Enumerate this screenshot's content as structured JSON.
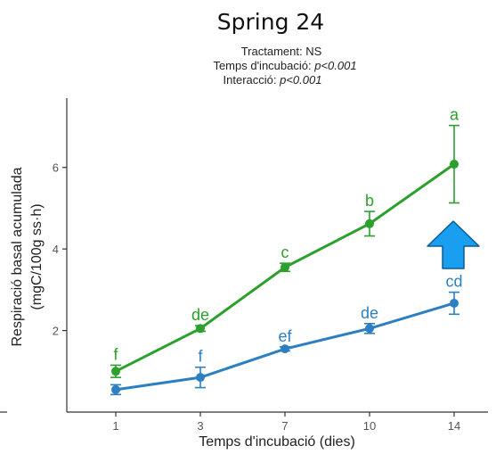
{
  "chart_data": {
    "type": "line",
    "title": "Spring 24",
    "stats": [
      {
        "label": "Tractament: ",
        "value": "NS"
      },
      {
        "label": "Temps d'incubació: ",
        "value": "p<0.001"
      },
      {
        "label": "Interacció: ",
        "value": "p<0.001"
      }
    ],
    "xlabel": "Temps d'incubació (dies)",
    "ylabel_line1": "Respiració basal acumulada",
    "ylabel_line2": "(mgC/100g ss·h)",
    "x_categories": [
      "1",
      "3",
      "7",
      "10",
      "14"
    ],
    "y_ticks": [
      2,
      4,
      6
    ],
    "ylim": [
      0,
      7.7
    ],
    "grid": false,
    "series": [
      {
        "color": "#2ca02c",
        "values": [
          1.0,
          2.05,
          3.55,
          4.62,
          6.08
        ],
        "err": [
          0.15,
          0.07,
          0.1,
          0.3,
          0.95
        ],
        "letters": [
          "f",
          "de",
          "c",
          "b",
          "a"
        ]
      },
      {
        "color": "#2c7fc0",
        "values": [
          0.55,
          0.85,
          1.55,
          2.05,
          2.67
        ],
        "err": [
          0.12,
          0.25,
          0.05,
          0.12,
          0.27
        ],
        "letters": [
          "",
          "f",
          "ef",
          "de",
          "cd"
        ]
      }
    ],
    "annotation": {
      "type": "arrow-up",
      "color": "#1a9ef0",
      "stroke": "#0a5c96"
    }
  }
}
